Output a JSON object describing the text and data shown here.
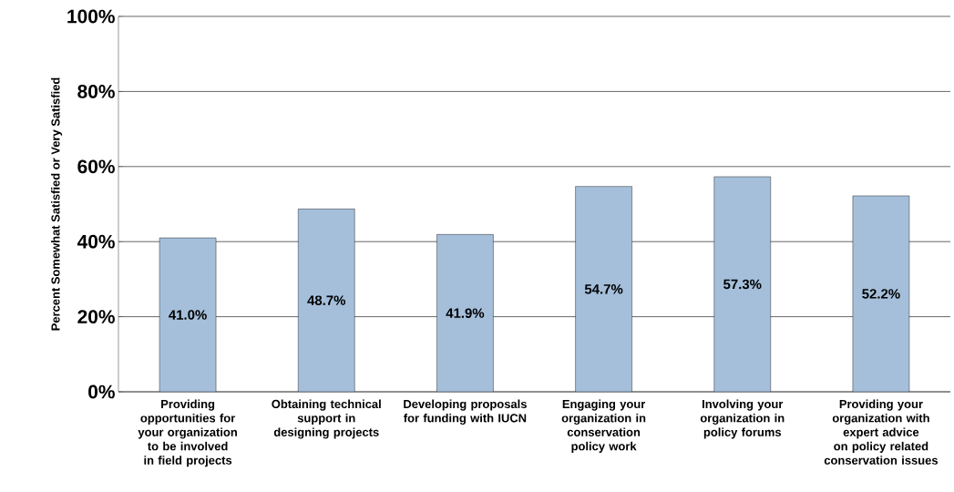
{
  "chart_data": {
    "type": "bar",
    "ylabel": "Percent Somewhat Satisfied or Very Satisfied",
    "categories": [
      "Providing opportunities for your organization to be involved in field projects",
      "Obtaining technical support in designing projects",
      "Developing proposals for funding with IUCN",
      "Engaging your organization in conservation policy work",
      "Involving your organization in policy forums",
      "Providing your organization with expert advice on policy related conservation issues"
    ],
    "values": [
      41.0,
      48.7,
      41.9,
      54.7,
      57.3,
      52.2
    ],
    "value_labels": [
      "41.0%",
      "48.7%",
      "41.9%",
      "54.7%",
      "57.3%",
      "52.2%"
    ],
    "color": "#a5bfdb",
    "ylim": [
      0,
      100
    ],
    "yticks": [
      {
        "value": 0,
        "label": "0%"
      },
      {
        "value": 20,
        "label": "20%"
      },
      {
        "value": 40,
        "label": "40%"
      },
      {
        "value": 60,
        "label": "60%"
      },
      {
        "value": 80,
        "label": "80%"
      },
      {
        "value": 100,
        "label": "100%"
      }
    ],
    "grid": "y"
  }
}
